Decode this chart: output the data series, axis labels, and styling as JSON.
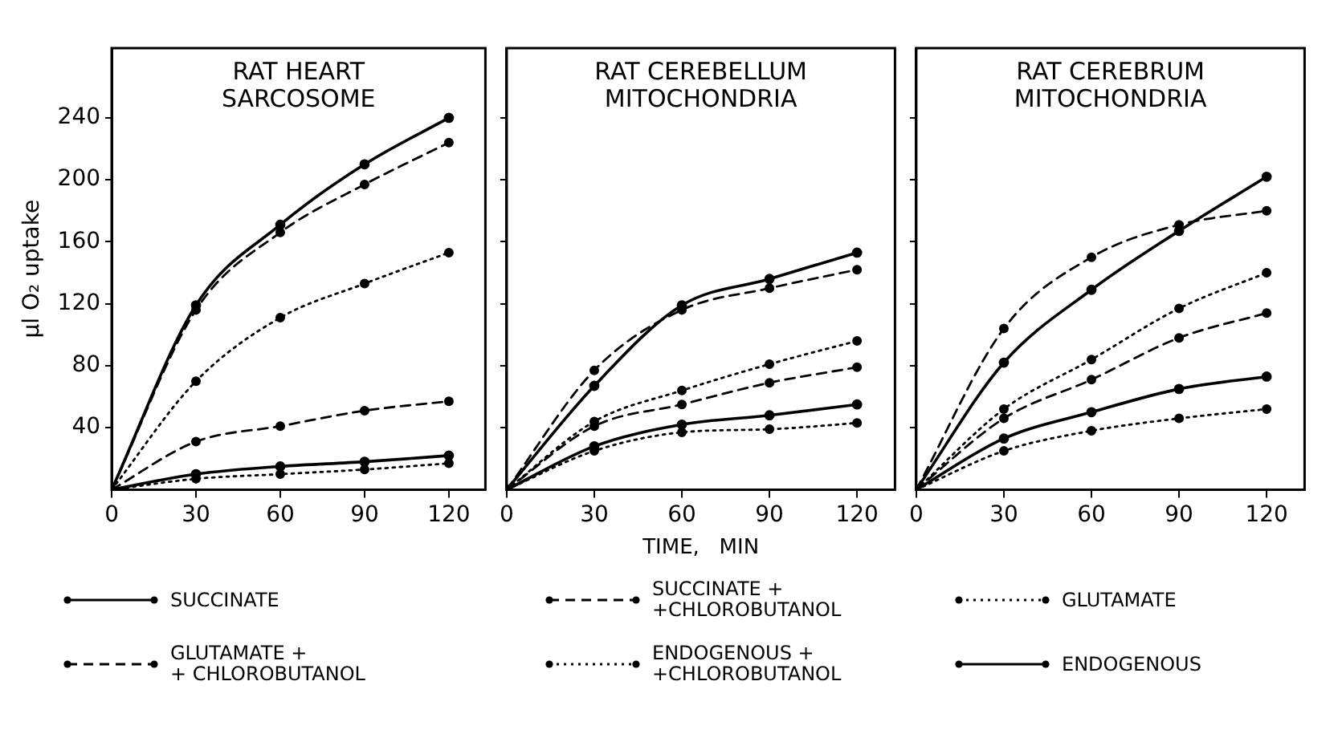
{
  "chart_data": [
    {
      "type": "line",
      "title": "RAT HEART\nSARCOSOME",
      "ylabel": "μl O₂ uptake",
      "x": [
        0,
        30,
        60,
        90,
        120
      ],
      "xlim": [
        0,
        133
      ],
      "xticks": [
        0,
        30,
        60,
        90,
        120
      ],
      "ylim": [
        0,
        285
      ],
      "yticks": [
        40,
        80,
        120,
        160,
        200,
        240
      ],
      "marker": "circle",
      "legend": "bottom",
      "series": [
        {
          "name": "SUCCINATE",
          "color": "#000000",
          "line_style": "solid",
          "values": [
            0,
            119,
            171,
            210,
            240
          ]
        },
        {
          "name": "SUCCINATE +\n+CHLOROBUTANOL",
          "color": "#000000",
          "line_style": "dashed",
          "values": [
            0,
            116,
            166,
            197,
            224
          ]
        },
        {
          "name": "GLUTAMATE",
          "color": "#000000",
          "line_style": "dotted",
          "values": [
            0,
            70,
            111,
            133,
            153
          ]
        },
        {
          "name": "GLUTAMATE +\n+ CHLOROBUTANOL",
          "color": "#000000",
          "line_style": "dashed",
          "values": [
            0,
            31,
            41,
            51,
            57
          ]
        },
        {
          "name": "ENDOGENOUS +\n+CHLOROBUTANOL",
          "color": "#000000",
          "line_style": "dotted",
          "values": [
            0,
            7,
            10,
            13,
            17
          ]
        },
        {
          "name": "ENDOGENOUS",
          "color": "#000000",
          "line_style": "solid",
          "values": [
            0,
            10,
            15,
            18,
            22
          ]
        }
      ]
    },
    {
      "type": "line",
      "title": "RAT CEREBELLUM\nMITOCHONDRIA",
      "xlabel": "TIME,   MIN",
      "x": [
        0,
        30,
        60,
        90,
        120
      ],
      "xlim": [
        0,
        133
      ],
      "xticks": [
        0,
        30,
        60,
        90,
        120
      ],
      "ylim": [
        0,
        285
      ],
      "yticks": [
        40,
        80,
        120,
        160,
        200,
        240
      ],
      "marker": "circle",
      "tick_labels": "x",
      "series": [
        {
          "color": "#000000",
          "line_style": "solid",
          "values": [
            0,
            67,
            119,
            136,
            153
          ]
        },
        {
          "color": "#000000",
          "line_style": "dashed",
          "values": [
            0,
            77,
            116,
            130,
            142
          ]
        },
        {
          "color": "#000000",
          "line_style": "dotted",
          "values": [
            0,
            44,
            64,
            81,
            96
          ]
        },
        {
          "color": "#000000",
          "line_style": "dashed",
          "values": [
            0,
            41,
            55,
            69,
            79
          ]
        },
        {
          "color": "#000000",
          "line_style": "dotted",
          "values": [
            0,
            25,
            37,
            39,
            43
          ]
        },
        {
          "color": "#000000",
          "line_style": "solid",
          "values": [
            0,
            28,
            42,
            48,
            55
          ]
        }
      ]
    },
    {
      "type": "line",
      "title": "RAT CEREBRUM\nMITOCHONDRIA",
      "x": [
        0,
        30,
        60,
        90,
        120
      ],
      "xlim": [
        0,
        133
      ],
      "xticks": [
        0,
        30,
        60,
        90,
        120
      ],
      "ylim": [
        0,
        285
      ],
      "yticks": [
        40,
        80,
        120,
        160,
        200,
        240
      ],
      "marker": "circle",
      "tick_labels": "x",
      "series": [
        {
          "color": "#000000",
          "line_style": "solid",
          "values": [
            0,
            82,
            129,
            167,
            202
          ]
        },
        {
          "color": "#000000",
          "line_style": "dashed",
          "values": [
            0,
            104,
            150,
            171,
            180
          ]
        },
        {
          "color": "#000000",
          "line_style": "dotted",
          "values": [
            0,
            52,
            84,
            117,
            140
          ]
        },
        {
          "color": "#000000",
          "line_style": "dashed",
          "values": [
            0,
            46,
            71,
            98,
            114
          ]
        },
        {
          "color": "#000000",
          "line_style": "dotted",
          "values": [
            0,
            25,
            38,
            46,
            52
          ]
        },
        {
          "color": "#000000",
          "line_style": "solid",
          "values": [
            0,
            33,
            50,
            65,
            73
          ]
        }
      ]
    }
  ]
}
